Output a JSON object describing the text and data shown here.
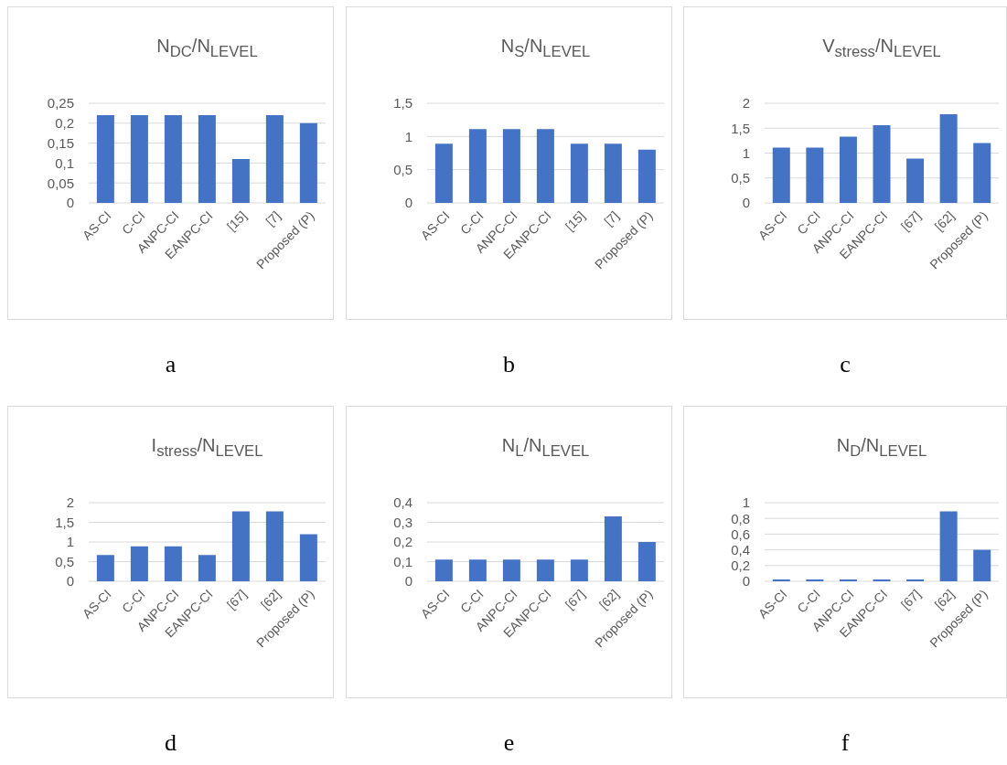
{
  "chart_data": [
    {
      "type": "bar",
      "title": "N$_{DC}$/N$_{LEVEL}$",
      "categories": [
        "AS-CI",
        "C-CI",
        "ANPC-CI",
        "EANPC-CI",
        "[15]",
        "[7]",
        "Proposed (P)"
      ],
      "values": [
        0.22,
        0.22,
        0.22,
        0.22,
        0.11,
        0.22,
        0.2
      ],
      "color": "#4472c4",
      "ylim": [
        0,
        0.25
      ],
      "yticks": [
        0,
        {
          "value": 0.05,
          "label": "0,05"
        },
        {
          "value": 0.1,
          "label": "0,1"
        },
        {
          "value": 0.15,
          "label": "0,15"
        },
        {
          "value": 0.2,
          "label": "0,2"
        },
        {
          "value": 0.25,
          "label": "0,25"
        }
      ],
      "grid": "y",
      "annotations": [
        "a"
      ]
    },
    {
      "type": "bar",
      "title": "N$_{S}$/N$_{LEVEL}$",
      "categories": [
        "AS-CI",
        "C-CI",
        "ANPC-CI",
        "EANPC-CI",
        "[15]",
        "[7]",
        "Proposed (P)"
      ],
      "values": [
        0.89,
        1.11,
        1.11,
        1.11,
        0.89,
        0.89,
        0.8
      ],
      "color": "#4472c4",
      "ylim": [
        0,
        1.5
      ],
      "yticks": [
        0,
        {
          "value": 0.5,
          "label": "0,5"
        },
        1,
        {
          "value": 1.5,
          "label": "1,5"
        }
      ],
      "grid": "y",
      "annotations": [
        "b"
      ]
    },
    {
      "type": "bar",
      "title": "V$_{stress}$/N$_{LEVEL}$",
      "categories": [
        "AS-CI",
        "C-CI",
        "ANPC-CI",
        "EANPC-CI",
        "[67]",
        "[62]",
        "Proposed (P)"
      ],
      "values": [
        1.11,
        1.11,
        1.33,
        1.56,
        0.89,
        1.78,
        1.2
      ],
      "color": "#4472c4",
      "ylim": [
        0,
        2
      ],
      "yticks": [
        0,
        {
          "value": 0.5,
          "label": "0,5"
        },
        1,
        {
          "value": 1.5,
          "label": "1,5"
        },
        2
      ],
      "grid": "y",
      "annotations": [
        "c"
      ]
    },
    {
      "type": "bar",
      "title": "I$_{stress}$/N$_{LEVEL}$",
      "categories": [
        "AS-CI",
        "C-CI",
        "ANPC-CI",
        "EANPC-CI",
        "[67]",
        "[62]",
        "Proposed (P)"
      ],
      "values": [
        0.67,
        0.89,
        0.89,
        0.67,
        1.78,
        1.78,
        1.2
      ],
      "color": "#4472c4",
      "ylim": [
        0,
        2
      ],
      "yticks": [
        0,
        {
          "value": 0.5,
          "label": "0,5"
        },
        1,
        {
          "value": 1.5,
          "label": "1,5"
        },
        2
      ],
      "grid": "y",
      "annotations": [
        "d"
      ]
    },
    {
      "type": "bar",
      "title": "N$_{L}$/N$_{LEVEL}$",
      "categories": [
        "AS-CI",
        "C-CI",
        "ANPC-CI",
        "EANPC-CI",
        "[67]",
        "[62]",
        "Proposed (P)"
      ],
      "values": [
        0.11,
        0.11,
        0.11,
        0.11,
        0.11,
        0.33,
        0.2
      ],
      "color": "#4472c4",
      "ylim": [
        0,
        0.4
      ],
      "yticks": [
        0,
        {
          "value": 0.1,
          "label": "0,1"
        },
        {
          "value": 0.2,
          "label": "0,2"
        },
        {
          "value": 0.3,
          "label": "0,3"
        },
        {
          "value": 0.4,
          "label": "0,4"
        }
      ],
      "grid": "y",
      "annotations": [
        "e"
      ]
    },
    {
      "type": "bar",
      "title": "N$_{D}$/N$_{LEVEL}$",
      "categories": [
        "AS-CI",
        "C-CI",
        "ANPC-CI",
        "EANPC-CI",
        "[67]",
        "[62]",
        "Proposed (P)"
      ],
      "values": [
        0,
        0,
        0,
        0,
        0,
        0.89,
        0.4
      ],
      "color": "#4472c4",
      "ylim": [
        0,
        1
      ],
      "yticks": [
        0,
        {
          "value": 0.2,
          "label": "0,2"
        },
        {
          "value": 0.4,
          "label": "0,4"
        },
        {
          "value": 0.6,
          "label": "0,6"
        },
        {
          "value": 0.8,
          "label": "0,8"
        },
        1
      ],
      "grid": "y",
      "annotations": [
        "f"
      ]
    }
  ]
}
